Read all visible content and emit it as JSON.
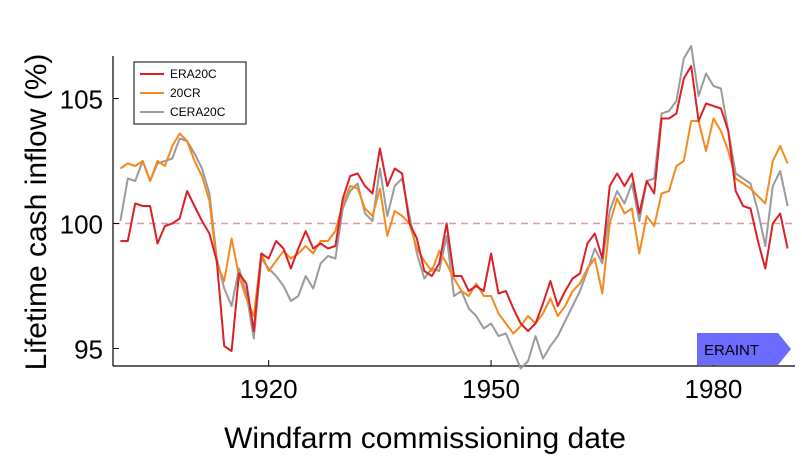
{
  "chart_data": {
    "type": "line",
    "xlabel": "Windfarm commissioning date",
    "ylabel": "Lifetime cash inflow (%)",
    "xlim": [
      1899,
      1991
    ],
    "ylim": [
      94.3,
      106.7
    ],
    "x_ticks": [
      1920,
      1950,
      1980
    ],
    "y_ticks": [
      95,
      100,
      105
    ],
    "x_tick_labels": [
      "1920",
      "1950",
      "1980"
    ],
    "y_tick_labels": [
      "95",
      "100",
      "105"
    ],
    "grid": false,
    "legend_position": "top-left",
    "reference_line": {
      "y": 100,
      "color": "#e39a9a",
      "style": "dashed"
    },
    "annotation": {
      "text": "ERAINT",
      "x_start": 1980,
      "x_end": 1991
    },
    "x": [
      1900,
      1901,
      1902,
      1903,
      1904,
      1905,
      1906,
      1907,
      1908,
      1909,
      1910,
      1911,
      1912,
      1913,
      1914,
      1915,
      1916,
      1917,
      1918,
      1919,
      1920,
      1921,
      1922,
      1923,
      1924,
      1925,
      1926,
      1927,
      1928,
      1929,
      1930,
      1931,
      1932,
      1933,
      1934,
      1935,
      1936,
      1937,
      1938,
      1939,
      1940,
      1941,
      1942,
      1943,
      1944,
      1945,
      1946,
      1947,
      1948,
      1949,
      1950,
      1951,
      1952,
      1953,
      1954,
      1955,
      1956,
      1957,
      1958,
      1959,
      1960,
      1961,
      1962,
      1963,
      1964,
      1965,
      1966,
      1967,
      1968,
      1969,
      1970,
      1971,
      1972,
      1973,
      1974,
      1975,
      1976,
      1977,
      1978,
      1979,
      1980,
      1981,
      1982,
      1983,
      1984,
      1985,
      1986,
      1987,
      1988,
      1989,
      1990
    ],
    "series": [
      {
        "name": "ERA20C",
        "color": "#dd2027",
        "values": [
          99.3,
          99.3,
          100.8,
          100.7,
          100.7,
          99.2,
          99.9,
          100.0,
          100.2,
          101.3,
          100.7,
          100.1,
          99.6,
          98.5,
          95.1,
          94.9,
          98.0,
          97.6,
          95.7,
          98.8,
          98.6,
          99.3,
          99.0,
          98.2,
          99.0,
          99.7,
          99.0,
          99.2,
          99.0,
          99.1,
          101.0,
          101.9,
          102.0,
          101.5,
          101.2,
          103.0,
          101.5,
          102.2,
          102.0,
          100.0,
          99.4,
          98.1,
          97.9,
          98.4,
          100.0,
          97.9,
          97.9,
          97.3,
          97.5,
          97.3,
          98.8,
          97.2,
          97.3,
          96.6,
          96.0,
          95.7,
          96.0,
          96.8,
          97.7,
          96.7,
          97.3,
          97.8,
          98.0,
          99.2,
          99.6,
          98.6,
          101.5,
          102.0,
          101.5,
          102.0,
          100.4,
          101.7,
          101.2,
          104.2,
          104.2,
          104.4,
          105.8,
          106.3,
          104.1,
          104.8,
          104.7,
          104.6,
          103.7,
          101.3,
          100.7,
          100.6,
          99.3,
          98.2,
          100.0,
          100.4,
          99.0
        ]
      },
      {
        "name": "20CR",
        "color": "#f58a1f",
        "values": [
          102.2,
          102.4,
          102.3,
          102.5,
          101.7,
          102.5,
          102.3,
          103.1,
          103.6,
          103.3,
          102.5,
          101.9,
          100.9,
          98.4,
          97.7,
          99.4,
          97.9,
          97.0,
          96.3,
          98.8,
          98.1,
          98.5,
          98.9,
          98.6,
          98.8,
          99.1,
          98.8,
          99.3,
          99.3,
          99.7,
          100.8,
          101.5,
          101.4,
          100.6,
          100.3,
          101.4,
          99.5,
          100.5,
          100.3,
          100.0,
          99.0,
          98.5,
          98.1,
          98.9,
          98.4,
          97.8,
          97.3,
          97.1,
          97.6,
          97.1,
          97.1,
          96.4,
          96.0,
          95.6,
          95.9,
          96.3,
          96.0,
          96.4,
          97.0,
          96.3,
          96.7,
          97.3,
          97.6,
          98.2,
          98.6,
          97.2,
          100.0,
          101.0,
          100.4,
          100.6,
          98.8,
          100.3,
          99.9,
          101.2,
          101.3,
          102.3,
          102.5,
          104.1,
          104.1,
          102.9,
          104.2,
          103.7,
          102.9,
          101.8,
          101.6,
          101.4,
          101.1,
          100.8,
          102.5,
          103.1,
          102.4
        ]
      },
      {
        "name": "CERA20C",
        "color": "#9b9b9b",
        "values": [
          100.1,
          101.8,
          101.7,
          102.5,
          101.7,
          102.4,
          102.5,
          102.6,
          103.4,
          103.3,
          102.8,
          102.2,
          101.2,
          98.6,
          97.4,
          96.7,
          98.2,
          97.2,
          95.4,
          98.6,
          98.2,
          97.9,
          97.5,
          96.9,
          97.1,
          97.9,
          97.4,
          98.4,
          98.7,
          98.6,
          100.6,
          101.3,
          101.6,
          100.4,
          100.1,
          102.2,
          100.3,
          101.5,
          101.8,
          100.3,
          98.8,
          97.8,
          98.2,
          98.1,
          99.5,
          97.1,
          97.3,
          96.6,
          96.3,
          95.8,
          96.0,
          95.5,
          95.6,
          94.9,
          94.2,
          94.5,
          95.5,
          94.6,
          95.1,
          95.5,
          96.1,
          96.7,
          97.3,
          98.1,
          99.0,
          98.4,
          100.5,
          101.3,
          100.8,
          101.6,
          100.1,
          101.7,
          101.8,
          104.4,
          104.5,
          104.9,
          106.6,
          107.1,
          105.1,
          106.0,
          105.5,
          105.4,
          103.7,
          102.0,
          101.8,
          101.6,
          100.5,
          99.1,
          101.5,
          102.1,
          100.7
        ]
      }
    ]
  }
}
